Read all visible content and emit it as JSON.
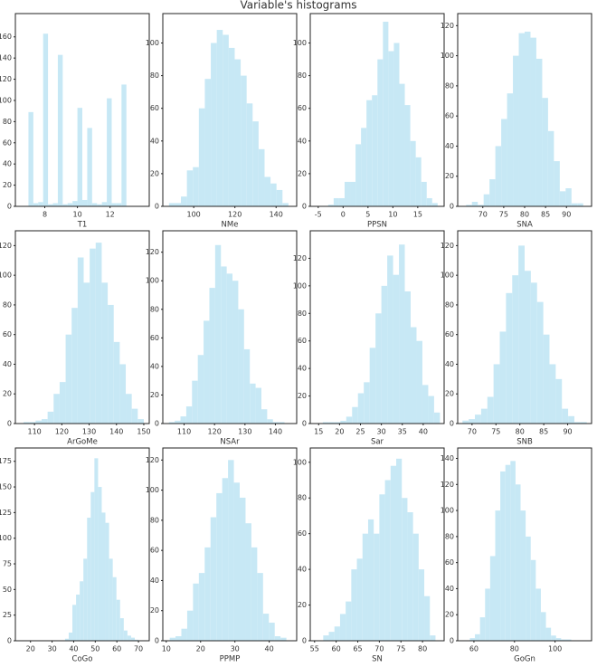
{
  "title": "Variable's histograms",
  "chart_data": [
    {
      "type": "histogram",
      "xlabel": "T1",
      "color": "#c7e8f5",
      "xlim": [
        6.2,
        14.4
      ],
      "ylim": [
        0,
        182
      ],
      "xticks": [
        8,
        10,
        12
      ],
      "yticks": [
        0,
        20,
        40,
        60,
        80,
        100,
        120,
        140,
        160
      ],
      "bins": [
        7,
        7.3,
        7.6,
        7.9,
        8.2,
        8.5,
        8.8,
        9.1,
        9.4,
        9.7,
        10,
        10.3,
        10.6,
        10.9,
        11.2,
        11.5,
        11.8,
        12.1,
        12.4,
        12.7,
        13
      ],
      "values": [
        89,
        3,
        4,
        163,
        2,
        3,
        143,
        2,
        3,
        5,
        93,
        6,
        74,
        3,
        2,
        4,
        102,
        3,
        3,
        115
      ]
    },
    {
      "type": "histogram",
      "xlabel": "NMe",
      "color": "#c7e8f5",
      "xlim": [
        85,
        150
      ],
      "ylim": [
        0,
        118
      ],
      "xticks": [
        100,
        120,
        140
      ],
      "yticks": [
        0,
        20,
        40,
        60,
        80,
        100
      ],
      "bins": [
        88,
        90.9,
        93.8,
        96.7,
        99.6,
        102.5,
        105.4,
        108.3,
        111.2,
        114.1,
        117,
        119.9,
        122.8,
        125.7,
        128.6,
        131.5,
        134.4,
        137.3,
        140.2,
        143.1,
        146
      ],
      "values": [
        2,
        2,
        6,
        22,
        24,
        60,
        78,
        100,
        108,
        105,
        97,
        90,
        80,
        63,
        52,
        35,
        18,
        14,
        10,
        2
      ]
    },
    {
      "type": "histogram",
      "xlabel": "PPSN",
      "color": "#c7e8f5",
      "xlim": [
        -6.6,
        20.3
      ],
      "ylim": [
        0,
        118
      ],
      "xticks": [
        -5,
        0,
        5,
        10,
        15
      ],
      "yticks": [
        0,
        20,
        40,
        60,
        80,
        100
      ],
      "bins": [
        -3,
        -1.9,
        -0.8,
        0.3,
        1.4,
        2.5,
        3.6,
        4.7,
        5.8,
        6.9,
        8,
        9.1,
        10.2,
        11.3,
        12.4,
        13.5,
        14.6,
        15.7,
        16.8,
        17.9,
        19
      ],
      "values": [
        1,
        5,
        5,
        15,
        15,
        38,
        48,
        65,
        68,
        90,
        113,
        95,
        100,
        75,
        62,
        40,
        30,
        15,
        5,
        2
      ]
    },
    {
      "type": "histogram",
      "xlabel": "SNA",
      "color": "#c7e8f5",
      "xlim": [
        64,
        96
      ],
      "ylim": [
        0,
        128
      ],
      "xticks": [
        70,
        75,
        80,
        85,
        90
      ],
      "yticks": [
        0,
        20,
        40,
        60,
        80,
        100,
        120
      ],
      "bins": [
        66,
        67.4,
        68.8,
        70.2,
        71.6,
        73,
        74.4,
        75.8,
        77.2,
        78.6,
        80,
        81.4,
        82.8,
        84.2,
        85.6,
        87,
        88.4,
        89.8,
        91.2,
        92.6,
        94
      ],
      "values": [
        1,
        3,
        1,
        8,
        18,
        40,
        58,
        75,
        100,
        115,
        116,
        112,
        98,
        72,
        50,
        30,
        10,
        12,
        2,
        2
      ]
    },
    {
      "type": "histogram",
      "xlabel": "ArGoMe",
      "color": "#c7e8f5",
      "xlim": [
        103,
        152
      ],
      "ylim": [
        0,
        130
      ],
      "xticks": [
        110,
        120,
        130,
        140,
        150
      ],
      "yticks": [
        0,
        20,
        40,
        60,
        80,
        100,
        120
      ],
      "bins": [
        106,
        108.2,
        110.4,
        112.6,
        114.8,
        117,
        119.2,
        121.4,
        123.6,
        125.8,
        128,
        130.2,
        132.4,
        134.6,
        136.8,
        139,
        141.2,
        143.4,
        145.6,
        147.8,
        150
      ],
      "values": [
        1,
        1,
        2,
        3,
        8,
        20,
        28,
        60,
        78,
        112,
        95,
        118,
        122,
        95,
        80,
        55,
        40,
        20,
        10,
        3
      ]
    },
    {
      "type": "histogram",
      "xlabel": "NSAr",
      "color": "#c7e8f5",
      "xlim": [
        103,
        147
      ],
      "ylim": [
        0,
        135
      ],
      "xticks": [
        110,
        120,
        130,
        140
      ],
      "yticks": [
        0,
        20,
        40,
        60,
        80,
        100,
        120
      ],
      "bins": [
        105,
        106.9,
        108.8,
        110.7,
        112.6,
        114.5,
        116.4,
        118.3,
        120.2,
        122.1,
        124,
        125.9,
        127.8,
        129.7,
        131.6,
        133.5,
        135.4,
        137.3,
        139.2,
        141.1,
        143
      ],
      "values": [
        1,
        2,
        5,
        12,
        30,
        48,
        72,
        95,
        125,
        110,
        105,
        100,
        80,
        52,
        28,
        25,
        10,
        3,
        1,
        1
      ]
    },
    {
      "type": "histogram",
      "xlabel": "Sar",
      "color": "#c7e8f5",
      "xlim": [
        13,
        45
      ],
      "ylim": [
        0,
        140
      ],
      "xticks": [
        15,
        20,
        25,
        30,
        35,
        40
      ],
      "yticks": [
        0,
        20,
        40,
        60,
        80,
        100,
        120
      ],
      "bins": [
        16,
        17.4,
        18.8,
        20.2,
        21.6,
        23,
        24.4,
        25.8,
        27.2,
        28.6,
        30,
        31.4,
        32.8,
        34.2,
        35.6,
        37,
        38.4,
        39.8,
        41.2,
        42.6,
        44
      ],
      "values": [
        1,
        1,
        1,
        2,
        5,
        12,
        22,
        30,
        55,
        80,
        100,
        122,
        108,
        130,
        96,
        70,
        60,
        28,
        20,
        8
      ]
    },
    {
      "type": "histogram",
      "xlabel": "SNB",
      "color": "#c7e8f5",
      "xlim": [
        67,
        95
      ],
      "ylim": [
        0,
        130
      ],
      "xticks": [
        70,
        75,
        80,
        85,
        90
      ],
      "yticks": [
        0,
        20,
        40,
        60,
        80,
        100,
        120
      ],
      "bins": [
        68,
        69.3,
        70.6,
        71.9,
        73.2,
        74.5,
        75.8,
        77.1,
        78.4,
        79.7,
        81,
        82.3,
        83.6,
        84.9,
        86.2,
        87.5,
        88.8,
        90.1,
        91.4,
        92.7,
        94
      ],
      "values": [
        2,
        3,
        6,
        10,
        18,
        40,
        62,
        88,
        100,
        120,
        103,
        95,
        82,
        60,
        40,
        30,
        10,
        5,
        1,
        1
      ]
    },
    {
      "type": "histogram",
      "xlabel": "CoGo",
      "color": "#c7e8f5",
      "xlim": [
        13,
        75
      ],
      "ylim": [
        0,
        188
      ],
      "xticks": [
        20,
        30,
        40,
        50,
        60,
        70
      ],
      "yticks": [
        0,
        25,
        50,
        75,
        100,
        125,
        150,
        175
      ],
      "bins": [
        36,
        37.7,
        39.4,
        41.1,
        42.8,
        44.5,
        46.2,
        47.9,
        49.6,
        51.3,
        53,
        54.7,
        56.4,
        58.1,
        59.8,
        61.5,
        63.2,
        64.9,
        66.6,
        68.3,
        70
      ],
      "values": [
        2,
        8,
        35,
        45,
        58,
        80,
        120,
        145,
        178,
        150,
        125,
        115,
        80,
        62,
        40,
        22,
        10,
        5,
        3,
        1
      ]
    },
    {
      "type": "histogram",
      "xlabel": "PPMP",
      "color": "#c7e8f5",
      "xlim": [
        9,
        48
      ],
      "ylim": [
        0,
        128
      ],
      "xticks": [
        10,
        20,
        30,
        40
      ],
      "yticks": [
        0,
        20,
        40,
        60,
        80,
        100,
        120
      ],
      "bins": [
        11,
        12.7,
        14.4,
        16.1,
        17.8,
        19.5,
        21.2,
        22.9,
        24.6,
        26.3,
        28,
        29.7,
        31.4,
        33.1,
        34.8,
        36.5,
        38.2,
        39.9,
        41.6,
        43.3,
        45
      ],
      "values": [
        2,
        3,
        8,
        20,
        38,
        45,
        62,
        82,
        98,
        108,
        120,
        105,
        95,
        78,
        62,
        45,
        18,
        12,
        3,
        2
      ]
    },
    {
      "type": "histogram",
      "xlabel": "SN",
      "color": "#c7e8f5",
      "xlim": [
        54,
        85
      ],
      "ylim": [
        0,
        108
      ],
      "xticks": [
        55,
        60,
        65,
        70,
        75,
        80
      ],
      "yticks": [
        0,
        20,
        40,
        60,
        80,
        100
      ],
      "bins": [
        57,
        58.3,
        59.6,
        60.9,
        62.2,
        63.5,
        64.8,
        66.1,
        67.4,
        68.7,
        70,
        71.3,
        72.6,
        73.9,
        75.2,
        76.5,
        77.8,
        79.1,
        80.4,
        81.7,
        83
      ],
      "values": [
        3,
        5,
        8,
        15,
        22,
        40,
        46,
        60,
        68,
        60,
        82,
        90,
        98,
        102,
        80,
        72,
        60,
        40,
        25,
        3
      ]
    },
    {
      "type": "histogram",
      "xlabel": "GoGn",
      "color": "#c7e8f5",
      "xlim": [
        52,
        118
      ],
      "ylim": [
        0,
        148
      ],
      "xticks": [
        60,
        80,
        100
      ],
      "yticks": [
        0,
        20,
        40,
        60,
        80,
        100,
        120,
        140
      ],
      "bins": [
        58,
        60.5,
        63,
        65.5,
        68,
        70.5,
        73,
        75.5,
        78,
        80.5,
        83,
        85.5,
        88,
        90.5,
        93,
        95.5,
        98,
        100.5,
        103,
        105.5,
        108
      ],
      "values": [
        2,
        5,
        18,
        40,
        65,
        100,
        130,
        135,
        138,
        120,
        100,
        80,
        62,
        40,
        22,
        10,
        4,
        2,
        1,
        1
      ]
    }
  ]
}
